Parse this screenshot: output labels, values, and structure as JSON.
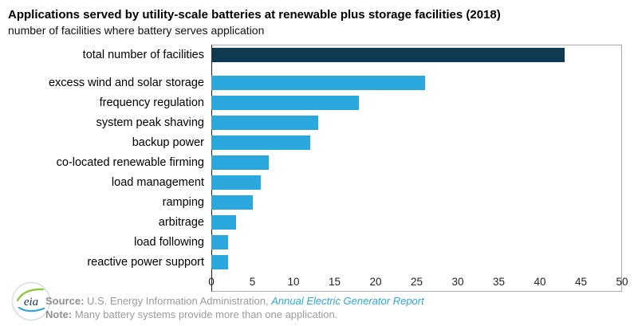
{
  "header": {
    "title": "Applications served by utility-scale batteries at renewable plus storage facilities (2018)",
    "subtitle": "number of facilities where battery serves application"
  },
  "chart_data": {
    "type": "bar",
    "orientation": "horizontal",
    "title": "Applications served by utility-scale batteries at renewable plus storage facilities (2018)",
    "subtitle": "number of facilities where battery serves application",
    "categories": [
      "total number of facilities",
      "excess wind and solar storage",
      "frequency regulation",
      "system peak shaving",
      "backup power",
      "co-located renewable firming",
      "load management",
      "ramping",
      "arbitrage",
      "load following",
      "reactive power support"
    ],
    "values": [
      43,
      26,
      18,
      13,
      12,
      7,
      6,
      5,
      3,
      2,
      2
    ],
    "xlabel": "",
    "ylabel": "",
    "xlim": [
      0,
      50
    ],
    "xticks": [
      0,
      5,
      10,
      15,
      20,
      25,
      30,
      35,
      40,
      45,
      50
    ],
    "grid": false,
    "legend": "none",
    "colors": {
      "total_bar": "#0e3a52",
      "default_bar": "#2aa7dc"
    }
  },
  "footer": {
    "source_label": "Source:",
    "source_text": " U.S. Energy Information Administration, ",
    "source_link": "Annual Electric Generator Report",
    "note_label": "Note:",
    "note_text": " Many battery systems provide more than one application."
  },
  "logo": {
    "text": "eia"
  }
}
